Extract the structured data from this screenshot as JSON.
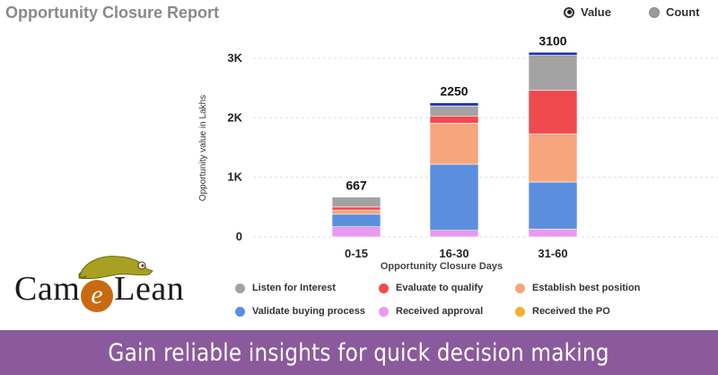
{
  "report": {
    "title": "Opportunity Closure Report"
  },
  "toggles": [
    {
      "label": "Value",
      "selected": true
    },
    {
      "label": "Count",
      "selected": false
    }
  ],
  "logo": {
    "text_before": "Cam",
    "text_mark": "e",
    "text_after": "Lean"
  },
  "banner": {
    "text": "Gain reliable insights for quick decision making"
  },
  "chart_data": {
    "type": "bar",
    "stacked": true,
    "title": "Opportunity Closure Report",
    "xlabel": "Opportunity Closure Days",
    "ylabel": "Opportunity value in Lakhs",
    "ylim": [
      0,
      3300
    ],
    "yticks": [
      {
        "value": 0,
        "label": "0"
      },
      {
        "value": 1000,
        "label": "1K"
      },
      {
        "value": 2000,
        "label": "2K"
      },
      {
        "value": 3000,
        "label": "3K"
      }
    ],
    "grid": true,
    "categories": [
      "0-15",
      "16-30",
      "31-60"
    ],
    "totals": [
      667,
      2250,
      3100
    ],
    "series": [
      {
        "name": "Received approval",
        "color": "#e89af0",
        "values": [
          170,
          110,
          130
        ]
      },
      {
        "name": "Validate buying process",
        "color": "#5b8fde",
        "values": [
          210,
          1110,
          790
        ]
      },
      {
        "name": "Establish best position",
        "color": "#f7a57d",
        "values": [
          70,
          690,
          810
        ]
      },
      {
        "name": "Evaluate to qualify",
        "color": "#f04a4f",
        "values": [
          50,
          120,
          730
        ]
      },
      {
        "name": "Listen for Interest",
        "color": "#a3a3a3",
        "values": [
          167,
          170,
          590
        ]
      },
      {
        "name": "Received the PO",
        "color": "#f5b030",
        "values": [
          0,
          0,
          0
        ]
      },
      {
        "name": "",
        "color": "#1a2fb0",
        "values": [
          0,
          50,
          50
        ]
      }
    ],
    "legend_order": [
      "Listen for Interest",
      "Evaluate to qualify",
      "Establish best position",
      "Validate buying process",
      "Received approval",
      "Received the PO"
    ]
  }
}
